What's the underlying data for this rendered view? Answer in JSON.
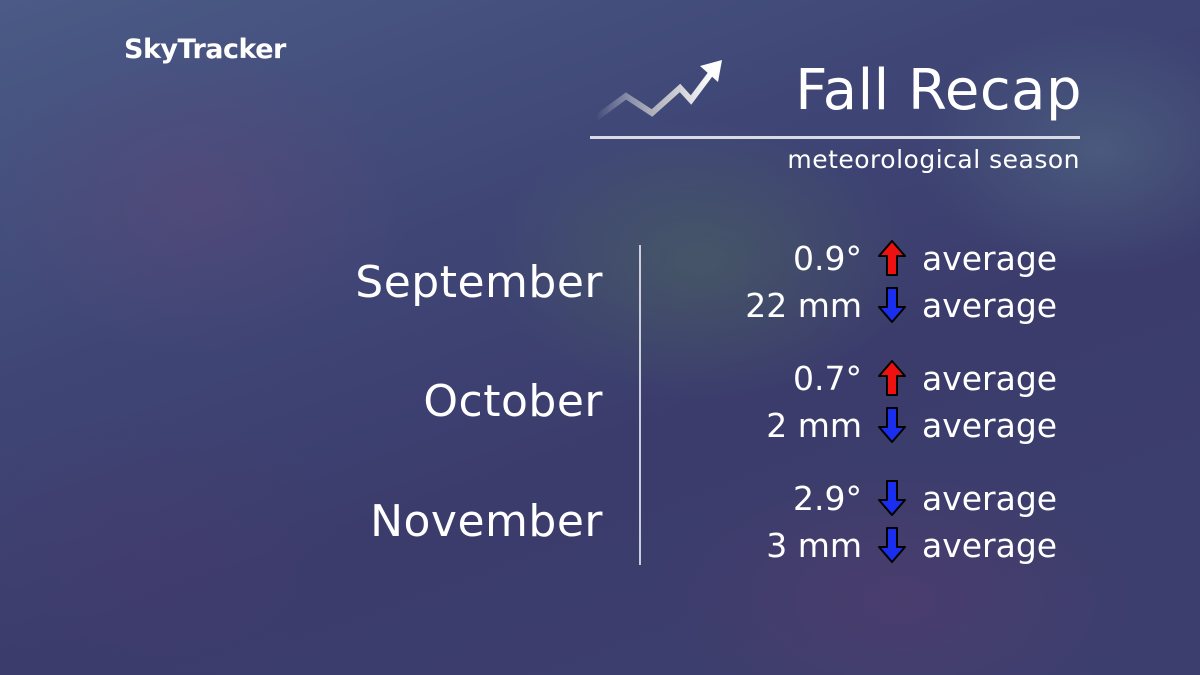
{
  "brand": {
    "logo": "SkyTracker"
  },
  "header": {
    "title": "Fall Recap",
    "subtitle": "meteorological season",
    "icon": "trend-up-arrow-icon"
  },
  "colors": {
    "above": "#ee1111",
    "below": "#1a2ef0"
  },
  "months": [
    {
      "name": "September",
      "temp": {
        "value": "0.9°",
        "direction": "up",
        "label": "average"
      },
      "precip": {
        "value": "22 mm",
        "direction": "down",
        "label": "average"
      }
    },
    {
      "name": "October",
      "temp": {
        "value": "0.7°",
        "direction": "up",
        "label": "average"
      },
      "precip": {
        "value": "2 mm",
        "direction": "down",
        "label": "average"
      }
    },
    {
      "name": "November",
      "temp": {
        "value": "2.9°",
        "direction": "down",
        "label": "average"
      },
      "precip": {
        "value": "3 mm",
        "direction": "down",
        "label": "average"
      }
    }
  ]
}
